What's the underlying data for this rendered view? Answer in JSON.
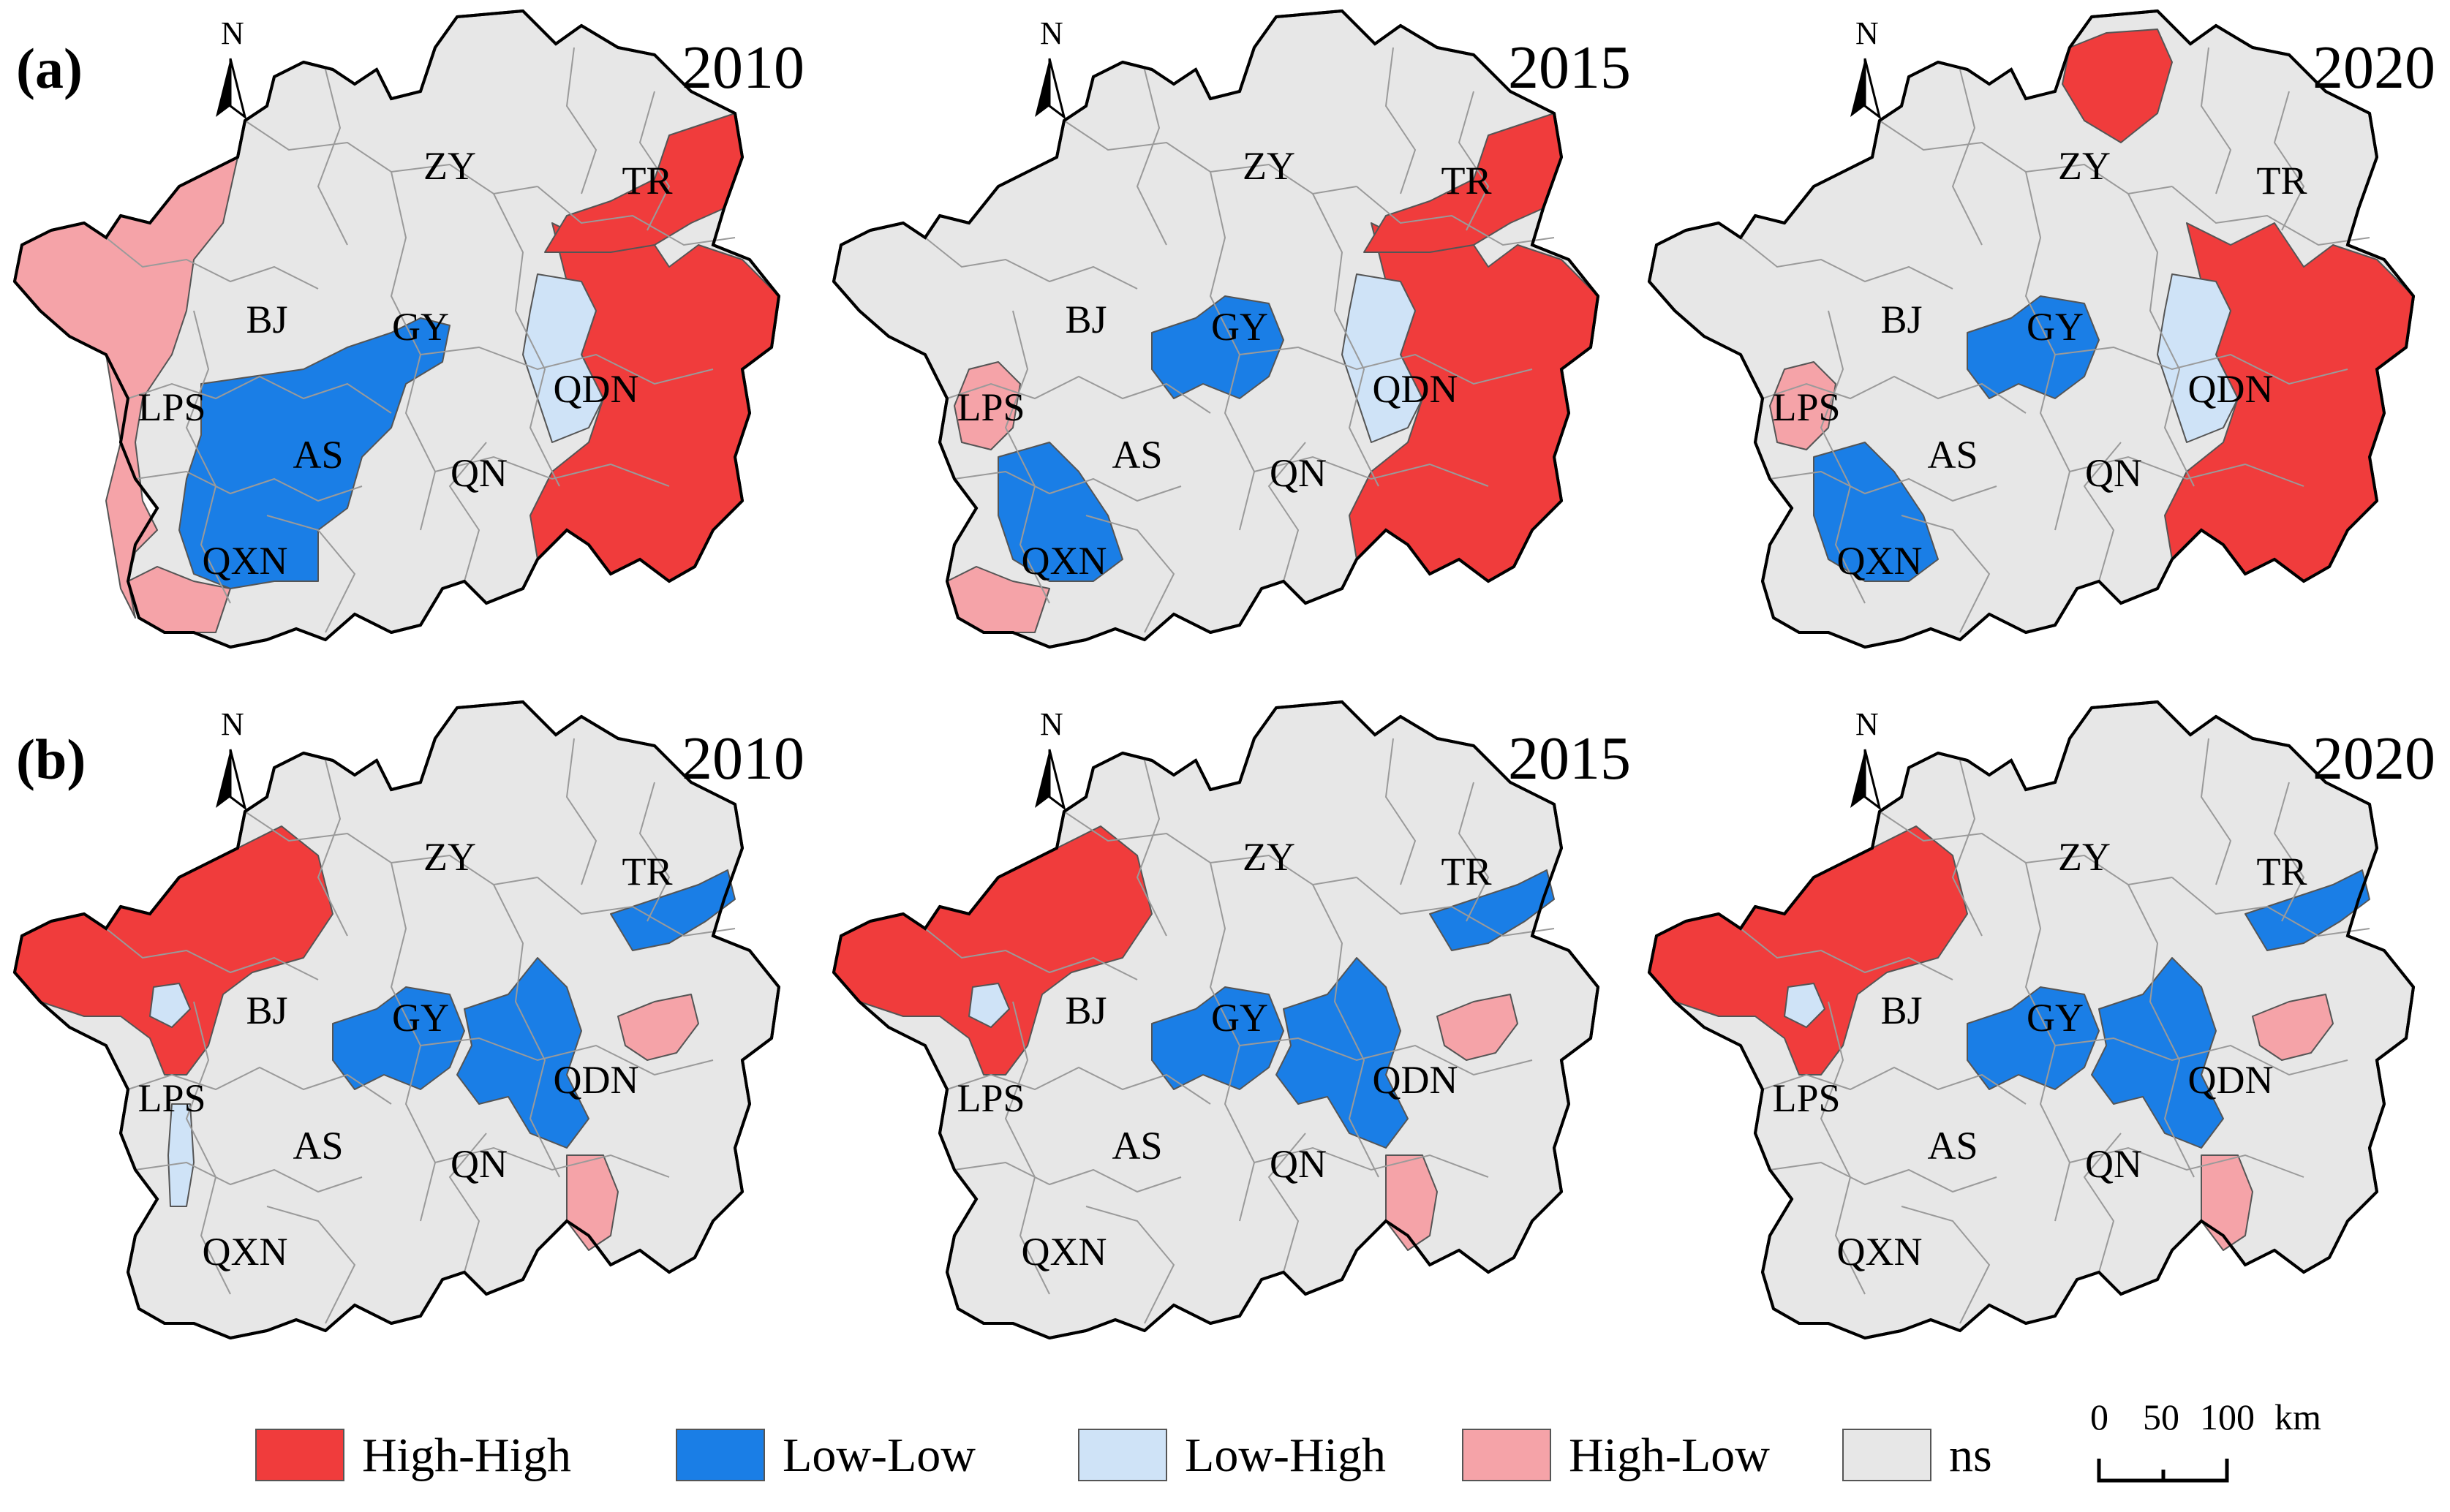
{
  "colors": {
    "High-High": "#f03c3c",
    "Low-Low": "#1a7ee6",
    "Low-High": "#cfe3f7",
    "High-Low": "#f5a3a8",
    "ns": "#e7e7e7"
  },
  "north_letter": "N",
  "rows": [
    {
      "letter": "(a)",
      "maps": [
        {
          "year": "2010",
          "labels": [
            "ZY",
            "TR",
            "BJ",
            "GY",
            "LPS",
            "AS",
            "QDN",
            "QN",
            "QXN"
          ],
          "clusters": [
            "HH-east",
            "HH-tr",
            "LH-center",
            "LL-gy-as-qxn",
            "HL-west",
            "HL-south"
          ]
        },
        {
          "year": "2015",
          "labels": [
            "ZY",
            "TR",
            "BJ",
            "GY",
            "LPS",
            "AS",
            "QDN",
            "QN",
            "QXN"
          ],
          "clusters": [
            "HH-east",
            "HH-tr",
            "LH-center",
            "LL-gy",
            "LL-qxn",
            "HL-lps",
            "HL-south"
          ]
        },
        {
          "year": "2020",
          "labels": [
            "ZY",
            "TR",
            "BJ",
            "GY",
            "LPS",
            "AS",
            "QDN",
            "QN",
            "QXN"
          ],
          "clusters": [
            "HH-east",
            "HH-zy",
            "LH-center",
            "LL-gy",
            "LL-qxn",
            "HL-lps"
          ]
        }
      ]
    },
    {
      "letter": "(b)",
      "maps": [
        {
          "year": "2010",
          "labels": [
            "ZY",
            "TR",
            "BJ",
            "GY",
            "LPS",
            "AS",
            "QDN",
            "QN",
            "QXN"
          ],
          "clusters": [
            "HH-bj",
            "LL-gy",
            "LL-east",
            "LL-tr",
            "HL-qdn",
            "HL-qn",
            "LH-lps",
            "LH-qxn"
          ]
        },
        {
          "year": "2015",
          "labels": [
            "ZY",
            "TR",
            "BJ",
            "GY",
            "LPS",
            "AS",
            "QDN",
            "QN",
            "QXN"
          ],
          "clusters": [
            "HH-bj",
            "LL-gy",
            "LL-east",
            "LL-tr",
            "HL-qdn",
            "HL-qn",
            "LH-lps"
          ]
        },
        {
          "year": "2020",
          "labels": [
            "ZY",
            "TR",
            "BJ",
            "GY",
            "LPS",
            "AS",
            "QDN",
            "QN",
            "QXN"
          ],
          "clusters": [
            "HH-bj",
            "LL-gy",
            "LL-east",
            "LL-tr",
            "HL-qdn",
            "HL-qn",
            "LH-lps"
          ]
        }
      ]
    }
  ],
  "legend": [
    {
      "key": "High-High",
      "label": "High-High"
    },
    {
      "key": "Low-Low",
      "label": "Low-Low"
    },
    {
      "key": "Low-High",
      "label": "Low-High"
    },
    {
      "key": "High-Low",
      "label": "High-Low"
    },
    {
      "key": "ns",
      "label": "ns"
    }
  ],
  "scale_bar": {
    "ticks": [
      "0",
      "50",
      "100"
    ],
    "unit": "km"
  }
}
